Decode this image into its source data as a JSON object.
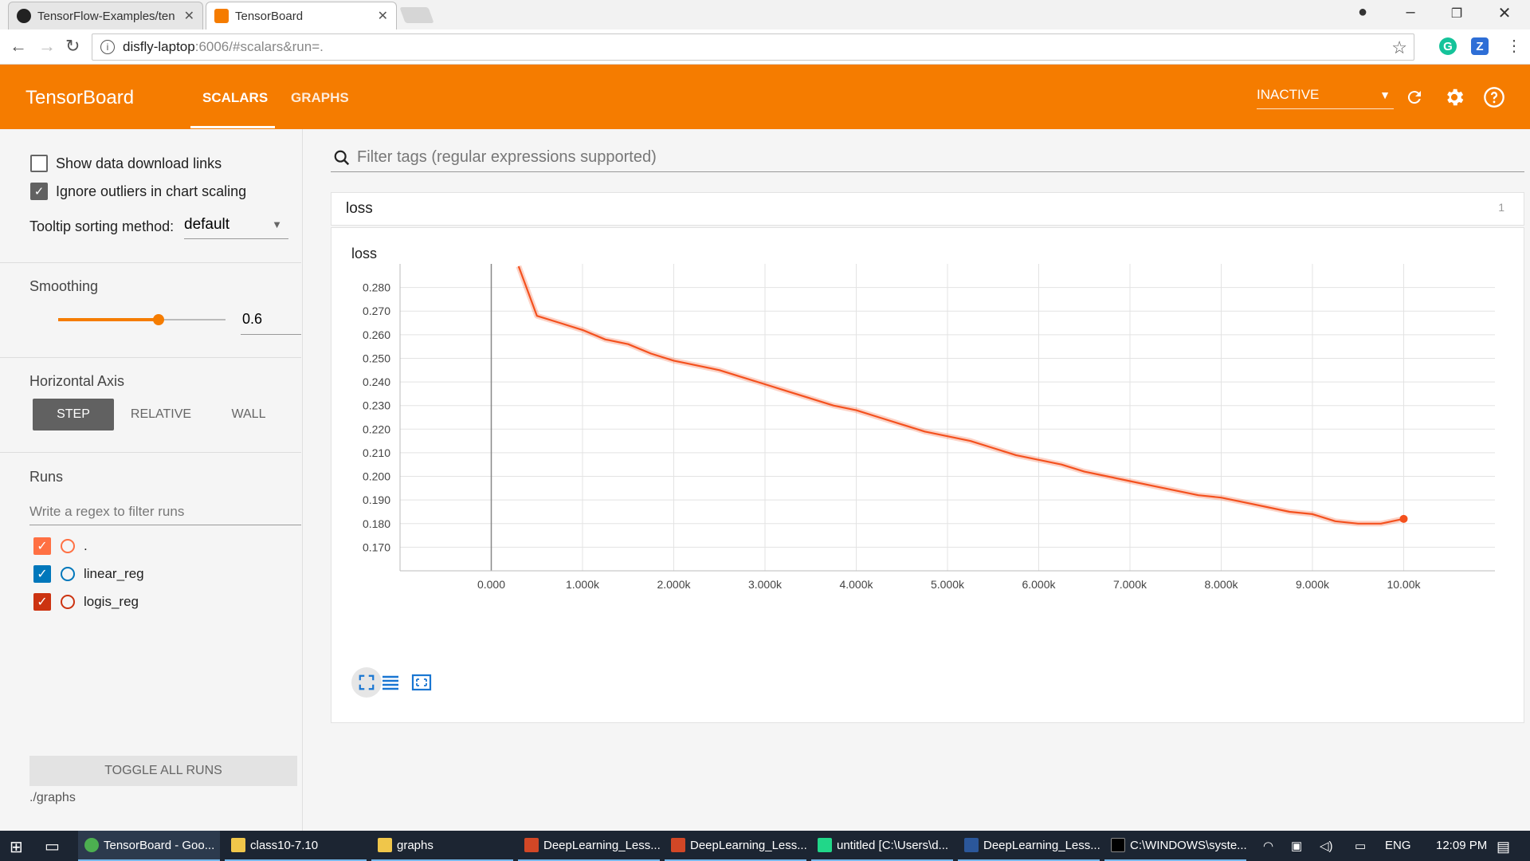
{
  "browser": {
    "tabs": [
      {
        "title": "TensorFlow-Examples/ten",
        "icon": "github-icon"
      },
      {
        "title": "TensorBoard",
        "icon": "tensorboard-icon"
      }
    ],
    "address": {
      "host": "disfly-laptop",
      "rest": ":6006/#scalars&run=."
    },
    "colors": {
      "grammarly": "#15c39a",
      "zotero": "#2e6ed6"
    }
  },
  "header": {
    "brand": "TensorBoard",
    "tabs": [
      "SCALARS",
      "GRAPHS"
    ],
    "run_status": "INACTIVE",
    "accent": "#f57c00"
  },
  "sidebar": {
    "show_download_label": "Show data download links",
    "show_download_checked": false,
    "ignore_outliers_label": "Ignore outliers in chart scaling",
    "ignore_outliers_checked": true,
    "tooltip_label": "Tooltip sorting method:",
    "tooltip_value": "default",
    "smoothing_label": "Smoothing",
    "smoothing_value": "0.6",
    "smoothing_fraction": 0.6,
    "horizontal_axis_label": "Horizontal Axis",
    "axis_options": [
      "STEP",
      "RELATIVE",
      "WALL"
    ],
    "axis_selected": "STEP",
    "runs_label": "Runs",
    "runs_filter_placeholder": "Write a regex to filter runs",
    "runs": [
      {
        "name": ".",
        "color": "#ff7043",
        "checked": true
      },
      {
        "name": "linear_reg",
        "color": "#0077bb",
        "checked": true
      },
      {
        "name": "logis_reg",
        "color": "#cc3311",
        "checked": true
      }
    ],
    "toggle_all_label": "TOGGLE ALL RUNS",
    "logdir": "./graphs"
  },
  "main": {
    "filter_placeholder": "Filter tags (regular expressions supported)",
    "pane_name": "loss",
    "pane_count": "1",
    "card_title": "loss"
  },
  "chart_data": {
    "type": "line",
    "title": "loss",
    "xlabel": "",
    "ylabel": "",
    "x_ticks": [
      "0.000",
      "1.000k",
      "2.000k",
      "3.000k",
      "4.000k",
      "5.000k",
      "6.000k",
      "7.000k",
      "8.000k",
      "9.000k",
      "10.00k"
    ],
    "y_ticks": [
      "0.280",
      "0.270",
      "0.260",
      "0.250",
      "0.240",
      "0.230",
      "0.220",
      "0.210",
      "0.200",
      "0.190",
      "0.180",
      "0.170"
    ],
    "xlim": [
      -1000,
      11000
    ],
    "ylim": [
      0.16,
      0.29
    ],
    "grid": true,
    "series": [
      {
        "color": "#f4511e",
        "x": [
          300,
          500,
          750,
          1000,
          1250,
          1500,
          1750,
          2000,
          2250,
          2500,
          2750,
          3000,
          3250,
          3500,
          3750,
          4000,
          4250,
          4500,
          4750,
          5000,
          5250,
          5500,
          5750,
          6000,
          6250,
          6500,
          6750,
          7000,
          7250,
          7500,
          7750,
          8000,
          8250,
          8500,
          8750,
          9000,
          9250,
          9500,
          9750,
          10000
        ],
        "y": [
          0.289,
          0.268,
          0.265,
          0.262,
          0.258,
          0.256,
          0.252,
          0.249,
          0.247,
          0.245,
          0.242,
          0.239,
          0.236,
          0.233,
          0.23,
          0.228,
          0.225,
          0.222,
          0.219,
          0.217,
          0.215,
          0.212,
          0.209,
          0.207,
          0.205,
          0.202,
          0.2,
          0.198,
          0.196,
          0.194,
          0.192,
          0.191,
          0.189,
          0.187,
          0.185,
          0.184,
          0.181,
          0.18,
          0.18,
          0.182
        ]
      }
    ]
  },
  "taskbar": {
    "items": [
      "TensorBoard - Goo...",
      "class10-7.10",
      "graphs",
      "DeepLearning_Less...",
      "DeepLearning_Less...",
      "untitled [C:\\Users\\d...",
      "DeepLearning_Less...",
      "C:\\WINDOWS\\syste..."
    ],
    "lang": "ENG",
    "time": "12:09 PM"
  }
}
